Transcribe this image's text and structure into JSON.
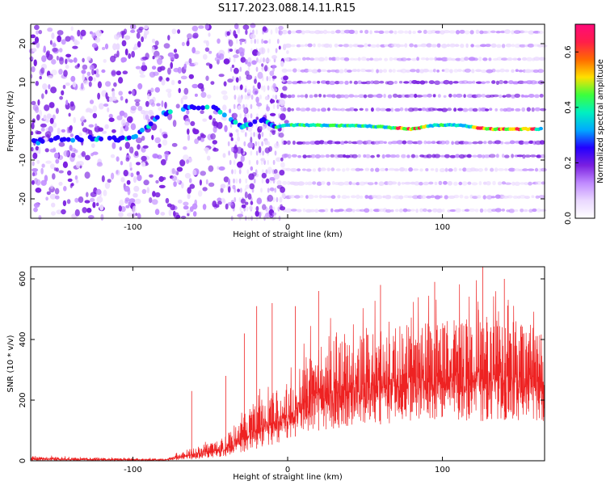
{
  "title": "S117.2023.088.14.11.R15",
  "chart_data": [
    {
      "type": "heatmap",
      "xlabel": "Height of straight line (km)",
      "ylabel": "Frequency (Hz)",
      "xlim": [
        -166,
        166
      ],
      "ylim": [
        -25,
        25
      ],
      "xticks": [
        -100,
        0,
        100
      ],
      "xtick_labels": [
        "-100",
        "0",
        "100"
      ],
      "yticks": [
        -20,
        -10,
        0,
        10,
        20
      ],
      "ytick_labels": [
        "-20",
        "-10",
        "0",
        "10",
        "20"
      ],
      "colorbar": {
        "label": "Normalized spectral amplitude",
        "range": [
          0,
          0.7
        ],
        "ticks": [
          0.0,
          0.2,
          0.4,
          0.6
        ],
        "tick_labels": [
          "0.0",
          "0.2",
          "0.4",
          "0.6"
        ],
        "colormap": [
          "#ffffff",
          "#ead8ff",
          "#c08aff",
          "#7a1fe0",
          "#2200ff",
          "#00aaff",
          "#00f0c0",
          "#3cff3c",
          "#ffe000",
          "#ff6a00",
          "#ff1e4a",
          "#ff0a7a"
        ]
      },
      "features": {
        "ridge": [
          {
            "x": -166,
            "y": -5.5
          },
          {
            "x": -150,
            "y": -4.5
          },
          {
            "x": -100,
            "y": -4.5
          },
          {
            "x": -80,
            "y": 2
          },
          {
            "x": -65,
            "y": 3.5
          },
          {
            "x": -50,
            "y": 4
          },
          {
            "x": -30,
            "y": -1.5
          },
          {
            "x": -15,
            "y": 0.5
          },
          {
            "x": -8,
            "y": -1.5
          },
          {
            "x": 0,
            "y": -1
          },
          {
            "x": 10,
            "y": -1
          },
          {
            "x": 50,
            "y": -1.2
          },
          {
            "x": 80,
            "y": -2
          },
          {
            "x": 95,
            "y": -1
          },
          {
            "x": 110,
            "y": -1
          },
          {
            "x": 130,
            "y": -2
          },
          {
            "x": 166,
            "y": -2
          }
        ],
        "harmonic_bands_hz": [
          23,
          19.5,
          16,
          13,
          10,
          6.5,
          3,
          -5.5,
          -9,
          -12.5,
          -16,
          -19.5,
          -23
        ]
      }
    },
    {
      "type": "line",
      "xlabel": "Height of straight line (km)",
      "ylabel": "SNR (10 * v/v)",
      "xlim": [
        -166,
        166
      ],
      "ylim": [
        0,
        640
      ],
      "xticks": [
        -100,
        0,
        100
      ],
      "xtick_labels": [
        "-100",
        "0",
        "100"
      ],
      "yticks": [
        0,
        200,
        400,
        600
      ],
      "ytick_labels": [
        "0",
        "200",
        "400",
        "600"
      ],
      "color": "#ee2222",
      "envelope": {
        "x": [
          -166,
          -140,
          -100,
          -80,
          -60,
          -40,
          -20,
          -5,
          0,
          10,
          20,
          40,
          60,
          80,
          100,
          120,
          140,
          166
        ],
        "lower": [
          0,
          0,
          0,
          0,
          5,
          15,
          40,
          60,
          70,
          90,
          100,
          110,
          120,
          130,
          140,
          130,
          135,
          130
        ],
        "upper": [
          20,
          15,
          10,
          10,
          60,
          100,
          260,
          300,
          300,
          440,
          480,
          510,
          540,
          560,
          580,
          600,
          580,
          560
        ]
      },
      "peaks": [
        {
          "x": -62,
          "y": 230
        },
        {
          "x": -40,
          "y": 280
        },
        {
          "x": -28,
          "y": 420
        },
        {
          "x": -20,
          "y": 510
        },
        {
          "x": -10,
          "y": 520
        },
        {
          "x": 5,
          "y": 510
        },
        {
          "x": 20,
          "y": 560
        },
        {
          "x": 60,
          "y": 580
        },
        {
          "x": 95,
          "y": 590
        },
        {
          "x": 126,
          "y": 640
        },
        {
          "x": 140,
          "y": 600
        }
      ]
    }
  ]
}
